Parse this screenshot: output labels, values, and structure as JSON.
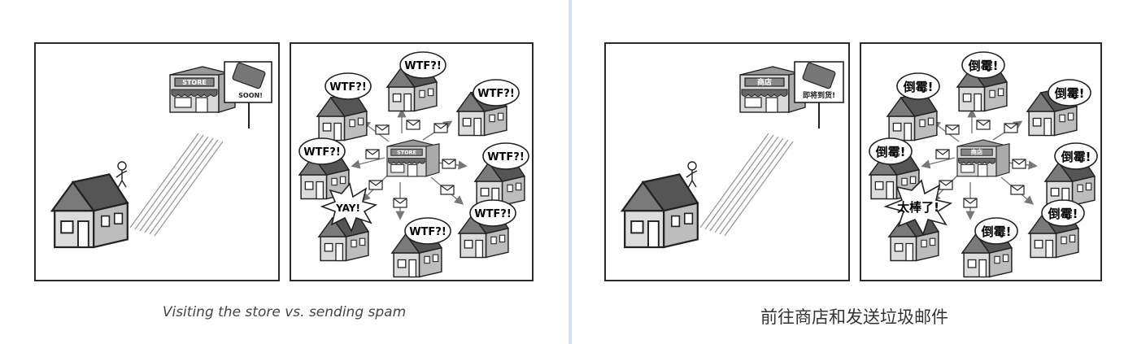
{
  "left": {
    "store_label": "STORE",
    "sign_text": "SOON!",
    "reaction_bubble": "WTF?!",
    "happy_bubble": "YAY!",
    "caption": "Visiting the store vs. sending spam"
  },
  "right": {
    "store_label": "商店",
    "sign_text": "即将到货!",
    "reaction_bubble": "倒霉!",
    "happy_bubble": "太棒了!",
    "caption": "前往商店和发送垃圾邮件"
  }
}
